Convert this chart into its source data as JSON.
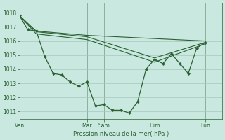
{
  "background_color": "#c8e8e0",
  "grid_color": "#a8c8bc",
  "line_color": "#2a6032",
  "marker_color": "#2a6032",
  "xlabel": "Pression niveau de la mer( hPa )",
  "ylim": [
    1010.5,
    1018.7
  ],
  "yticks": [
    1011,
    1012,
    1013,
    1014,
    1015,
    1016,
    1017,
    1018
  ],
  "x_day_labels": [
    "Ven",
    "Mar",
    "Sam",
    "Dim",
    "Lun"
  ],
  "x_day_positions": [
    0,
    96,
    120,
    192,
    264
  ],
  "xlim": [
    0,
    288
  ],
  "series_main": {
    "x": [
      0,
      12,
      24,
      36,
      48,
      60,
      72,
      84,
      96,
      108,
      120,
      132,
      144,
      156,
      168,
      180,
      192,
      204,
      216,
      228,
      240,
      252,
      264
    ],
    "y": [
      1017.8,
      1016.8,
      1016.7,
      1014.9,
      1013.7,
      1013.6,
      1013.1,
      1012.8,
      1013.1,
      1011.4,
      1011.5,
      1011.1,
      1011.1,
      1010.9,
      1011.7,
      1014.0,
      1014.7,
      1014.4,
      1015.1,
      1014.4,
      1013.7,
      1015.5,
      1015.9
    ]
  },
  "series_smooth": [
    {
      "x": [
        0,
        24,
        96,
        264
      ],
      "y": [
        1017.8,
        1016.7,
        1016.4,
        1016.0
      ]
    },
    {
      "x": [
        0,
        24,
        96,
        192,
        264
      ],
      "y": [
        1017.8,
        1016.65,
        1016.3,
        1014.8,
        1015.9
      ]
    },
    {
      "x": [
        0,
        24,
        96,
        192,
        264
      ],
      "y": [
        1017.8,
        1016.5,
        1016.1,
        1014.5,
        1015.8
      ]
    }
  ]
}
